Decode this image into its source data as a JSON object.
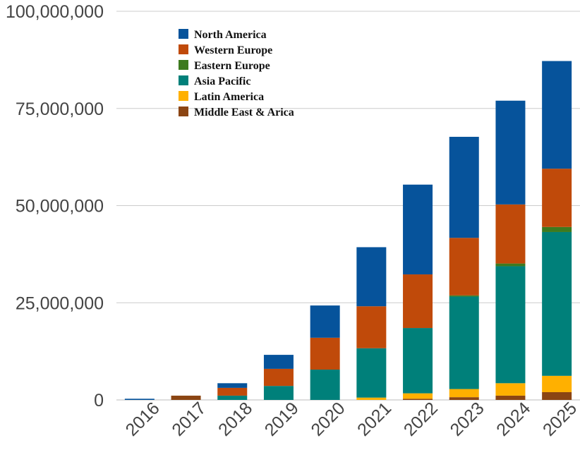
{
  "chart_data": {
    "type": "bar",
    "stacked": true,
    "title": "",
    "xlabel": "",
    "ylabel": "",
    "ylim": [
      0,
      100000000
    ],
    "yticks": [
      0,
      25000000,
      50000000,
      75000000,
      100000000
    ],
    "ytick_labels": [
      "0",
      "25,000,000",
      "50,000,000",
      "75,000,000",
      "100,000,000"
    ],
    "grid": true,
    "legend_position": "top-left",
    "categories": [
      "2016",
      "2017",
      "2018",
      "2019",
      "2020",
      "2021",
      "2022",
      "2023",
      "2024",
      "2025"
    ],
    "series": [
      {
        "name": "Middle East & Arica",
        "color": "#8b4513",
        "values": [
          0,
          1100000,
          0,
          0,
          0,
          0,
          300000,
          700000,
          1100000,
          2000000
        ]
      },
      {
        "name": "Latin America",
        "color": "#ffb000",
        "values": [
          0,
          0,
          0,
          0,
          0,
          600000,
          1400000,
          2100000,
          3200000,
          4200000
        ]
      },
      {
        "name": "Asia Pacific",
        "color": "#00807a",
        "values": [
          0,
          0,
          1100000,
          3600000,
          7800000,
          12700000,
          16800000,
          23800000,
          30100000,
          37000000
        ]
      },
      {
        "name": "Eastern Europe",
        "color": "#3d7a1f",
        "values": [
          0,
          0,
          0,
          0,
          0,
          0,
          0,
          300000,
          700000,
          1300000
        ]
      },
      {
        "name": "Western Europe",
        "color": "#c04a0a",
        "values": [
          0,
          0,
          2000000,
          4400000,
          8200000,
          10800000,
          13800000,
          14800000,
          15200000,
          15000000
        ]
      },
      {
        "name": "North America",
        "color": "#06539b",
        "values": [
          300000,
          0,
          1200000,
          3600000,
          8300000,
          15200000,
          23100000,
          26000000,
          26700000,
          27700000
        ]
      }
    ],
    "legend_order": [
      "North America",
      "Western Europe",
      "Eastern Europe",
      "Asia Pacific",
      "Latin America",
      "Middle East & Arica"
    ]
  }
}
